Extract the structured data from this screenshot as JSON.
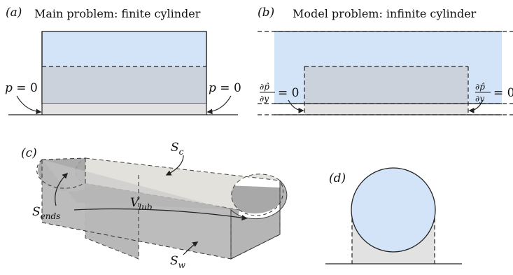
{
  "panel_a": {
    "tag": "(a)",
    "title": "Main problem: finite cylinder",
    "left_bc": "p = 0",
    "right_bc": "p = 0"
  },
  "panel_b": {
    "tag": "(b)",
    "title": "Model problem: infinite cylinder",
    "bc_num": "∂p̂",
    "bc_den": "∂y",
    "bc_rhs": "= 0"
  },
  "panel_c": {
    "tag": "(c)",
    "label_cylinder": "S",
    "label_cylinder_sub": "c",
    "label_volume": "V",
    "label_volume_sub": "lub",
    "label_ends": "S",
    "label_ends_sub": "ends",
    "label_wall": "S",
    "label_wall_sub": "w"
  },
  "panel_d": {
    "tag": "(d)"
  },
  "colors": {
    "fluid_blue": "#d3e3f8",
    "gap_gray": "#e2e2e2",
    "overlap": "#ccd2dc",
    "solid_gray": "#c9c9c9",
    "dark_gray": "#9b9b9b",
    "line": "#222222"
  }
}
